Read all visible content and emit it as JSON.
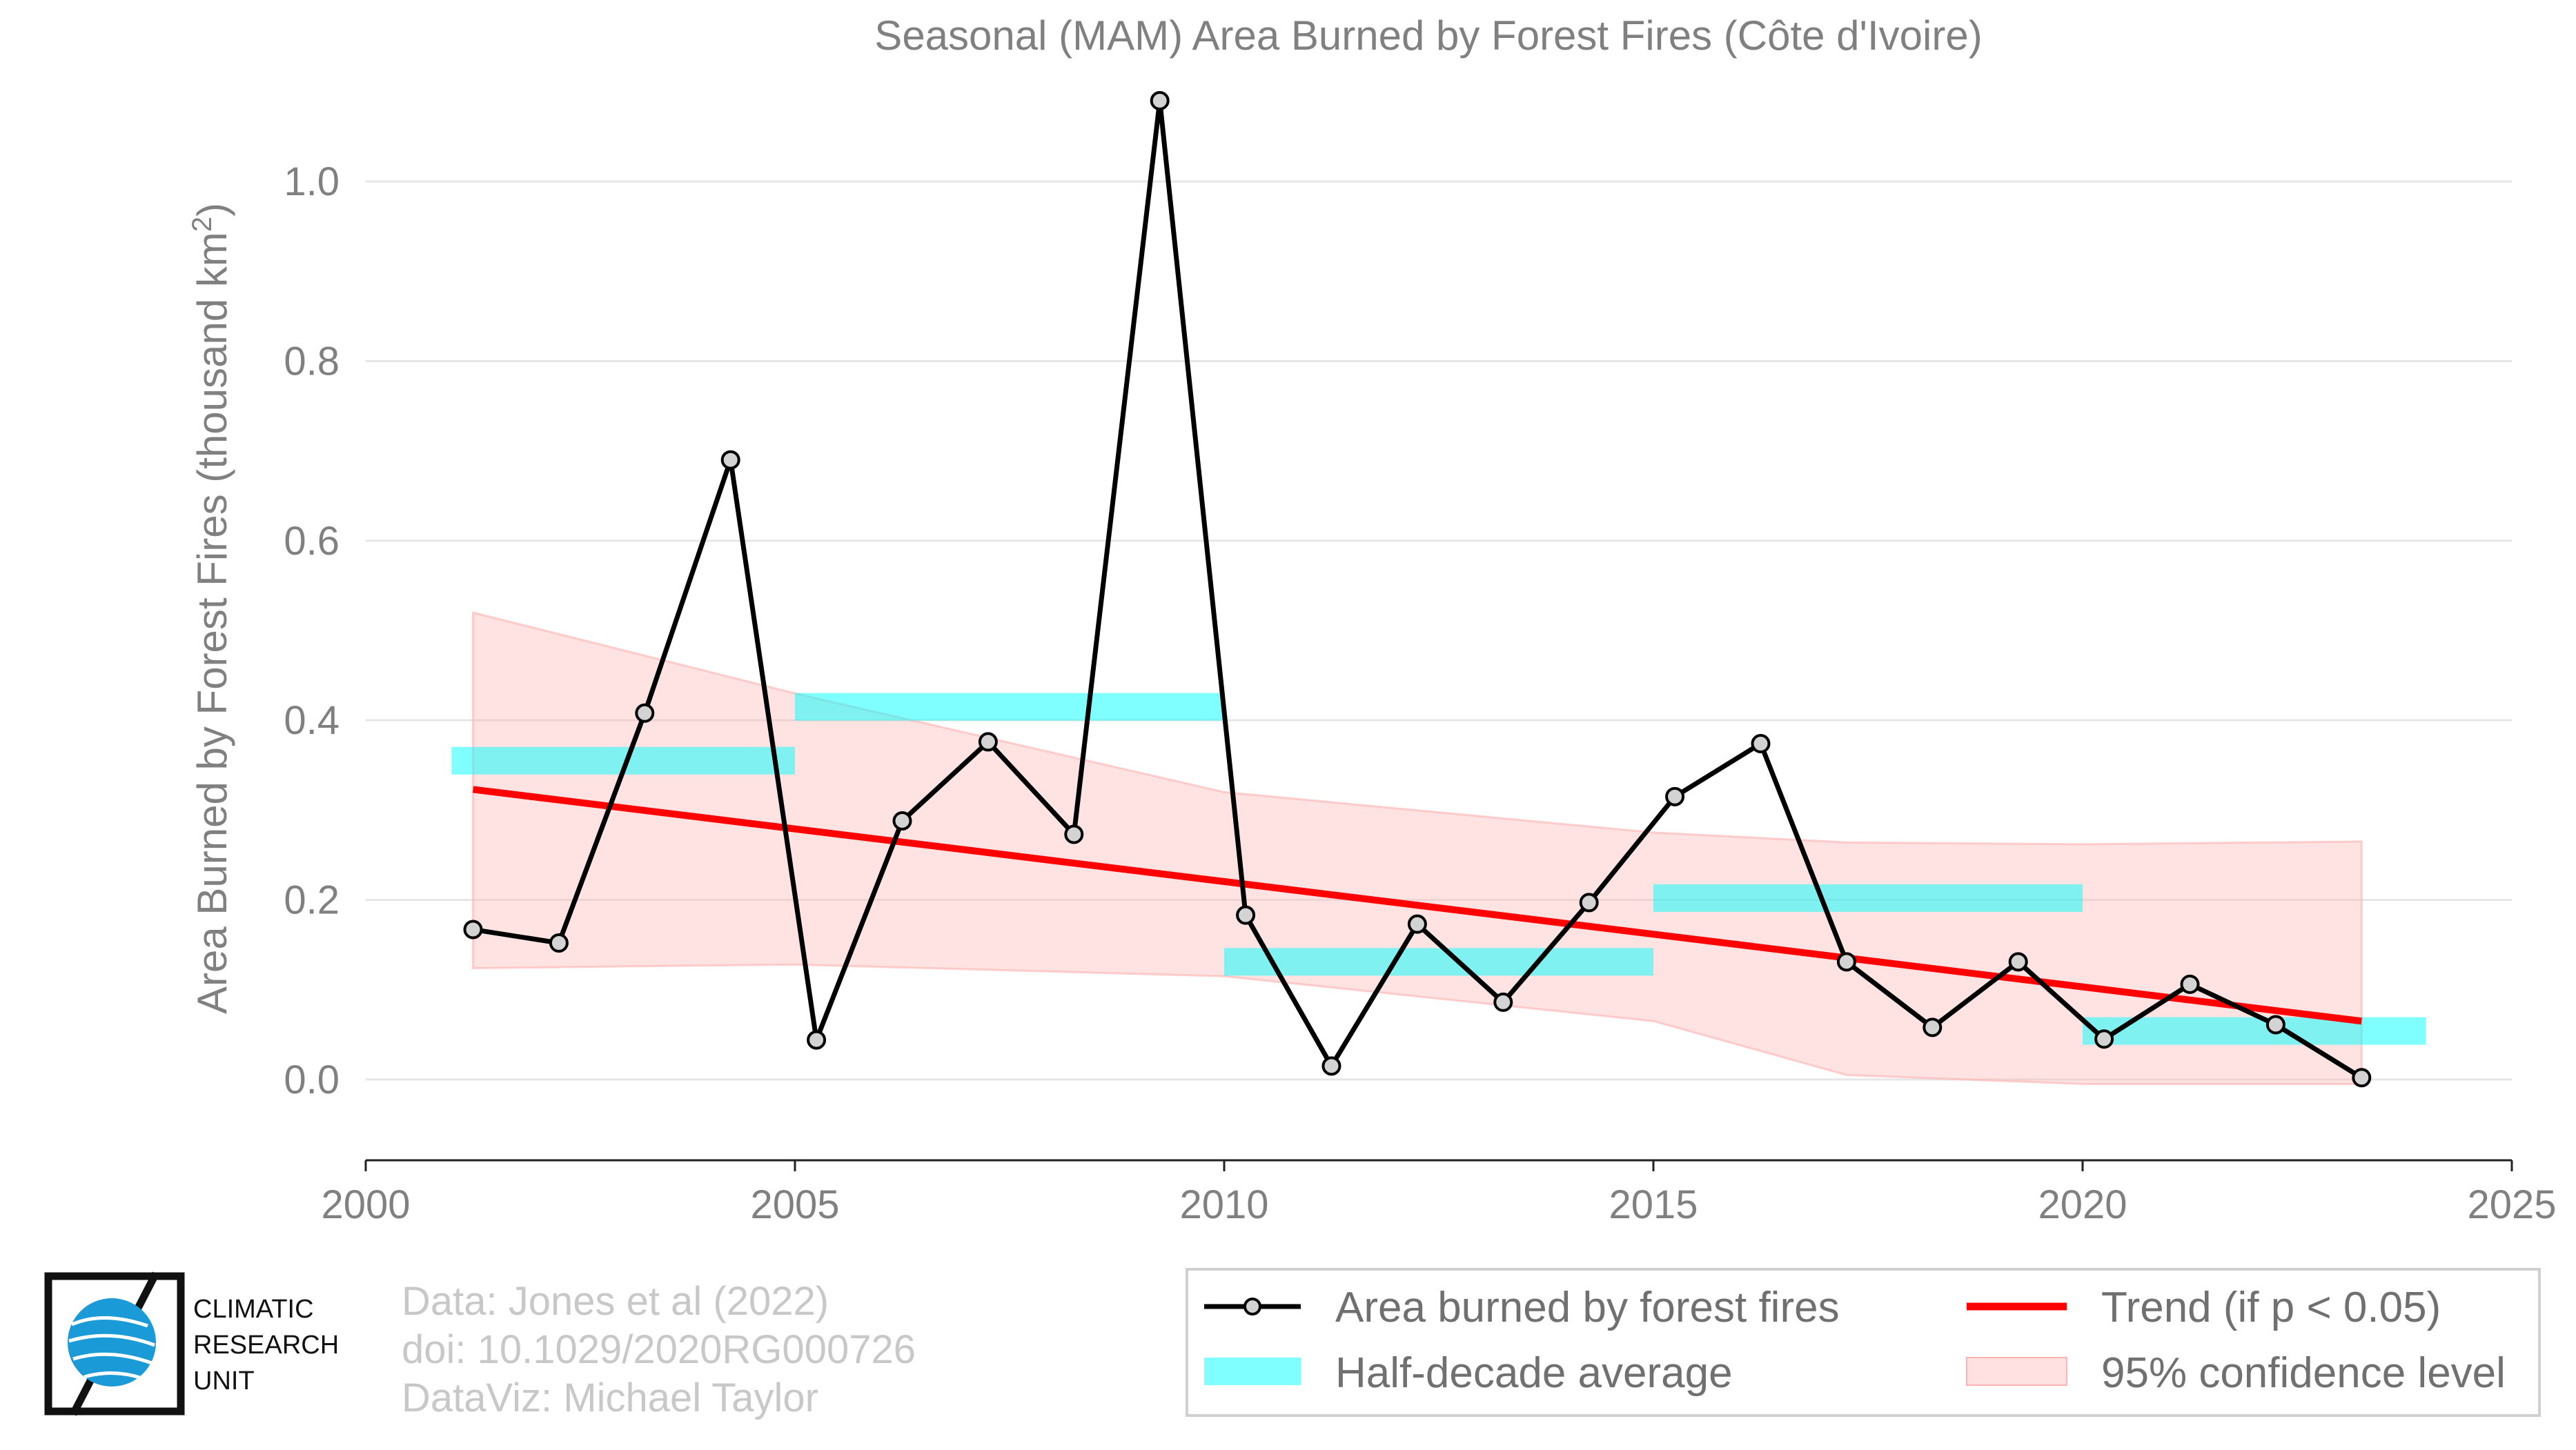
{
  "chart_data": {
    "type": "line",
    "title": "Seasonal (MAM) Area Burned by Forest Fires (Côte d'Ivoire)",
    "xlabel": "",
    "ylabel": "Area Burned by Forest Fires (thousand km",
    "ylabel_sup": "2",
    "ylabel_close": ")",
    "xlim": [
      2000,
      2025
    ],
    "ylim": [
      -0.09,
      1.11
    ],
    "xticks": [
      2000,
      2005,
      2010,
      2015,
      2020,
      2025
    ],
    "xtick_labels": [
      "2000",
      "2005",
      "2010",
      "2015",
      "2020",
      "2025"
    ],
    "yticks": [
      0.0,
      0.2,
      0.4,
      0.6,
      0.8,
      1.0
    ],
    "ytick_labels": [
      "0.0",
      "0.2",
      "0.4",
      "0.6",
      "0.8",
      "1.0"
    ],
    "grid": "horizontal",
    "legend_position": "bottom-right",
    "series": [
      {
        "name": "Area burned by forest fires",
        "color": "#000000",
        "x": [
          2001.25,
          2002.25,
          2003.25,
          2004.25,
          2005.25,
          2006.25,
          2007.25,
          2008.25,
          2009.25,
          2010.25,
          2011.25,
          2012.25,
          2013.25,
          2014.25,
          2015.25,
          2016.25,
          2017.25,
          2018.25,
          2019.25,
          2020.25,
          2021.25,
          2022.25,
          2023.25
        ],
        "values": [
          0.167,
          0.152,
          0.408,
          0.69,
          0.044,
          0.288,
          0.376,
          0.273,
          1.09,
          0.183,
          0.015,
          0.173,
          0.086,
          0.197,
          0.315,
          0.374,
          0.131,
          0.058,
          0.131,
          0.045,
          0.106,
          0.061,
          0.002
        ]
      }
    ],
    "half_decade_average": {
      "name": "Half-decade average",
      "color": "#00ffff",
      "segments": [
        {
          "x_start": 2001.0,
          "x_end": 2005.0,
          "value": 0.355
        },
        {
          "x_start": 2005.0,
          "x_end": 2010.0,
          "value": 0.415
        },
        {
          "x_start": 2010.0,
          "x_end": 2015.0,
          "value": 0.131
        },
        {
          "x_start": 2015.0,
          "x_end": 2020.0,
          "value": 0.202
        },
        {
          "x_start": 2020.0,
          "x_end": 2024.0,
          "value": 0.054
        }
      ]
    },
    "trend": {
      "name": "Trend (if p < 0.05)",
      "color": "#ff0000",
      "x": [
        2001.25,
        2023.25
      ],
      "values": [
        0.323,
        0.065
      ]
    },
    "confidence_band": {
      "name": "95% confidence level",
      "color": "#ffb3b3",
      "x": [
        2001.25,
        2005.0,
        2010.0,
        2015.0,
        2017.25,
        2020.0,
        2023.25
      ],
      "upper": [
        0.52,
        0.43,
        0.32,
        0.275,
        0.264,
        0.262,
        0.265
      ],
      "lower": [
        0.124,
        0.128,
        0.115,
        0.065,
        0.005,
        -0.005,
        -0.005
      ]
    }
  },
  "credits": {
    "line1": "Data: Jones et al (2022)",
    "line2": "doi: 10.1029/2020RG000726",
    "line3": "DataViz: Michael Taylor"
  },
  "logo": {
    "line1": "CLIMATIC",
    "line2": "RESEARCH",
    "line3": "UNIT",
    "icon": "globe-icon",
    "accent": "#1a9ad6"
  },
  "legend": {
    "item1": "Area burned by forest fires",
    "item2": "Trend (if p < 0.05)",
    "item3": "Half-decade average",
    "item4": "95% confidence level"
  }
}
